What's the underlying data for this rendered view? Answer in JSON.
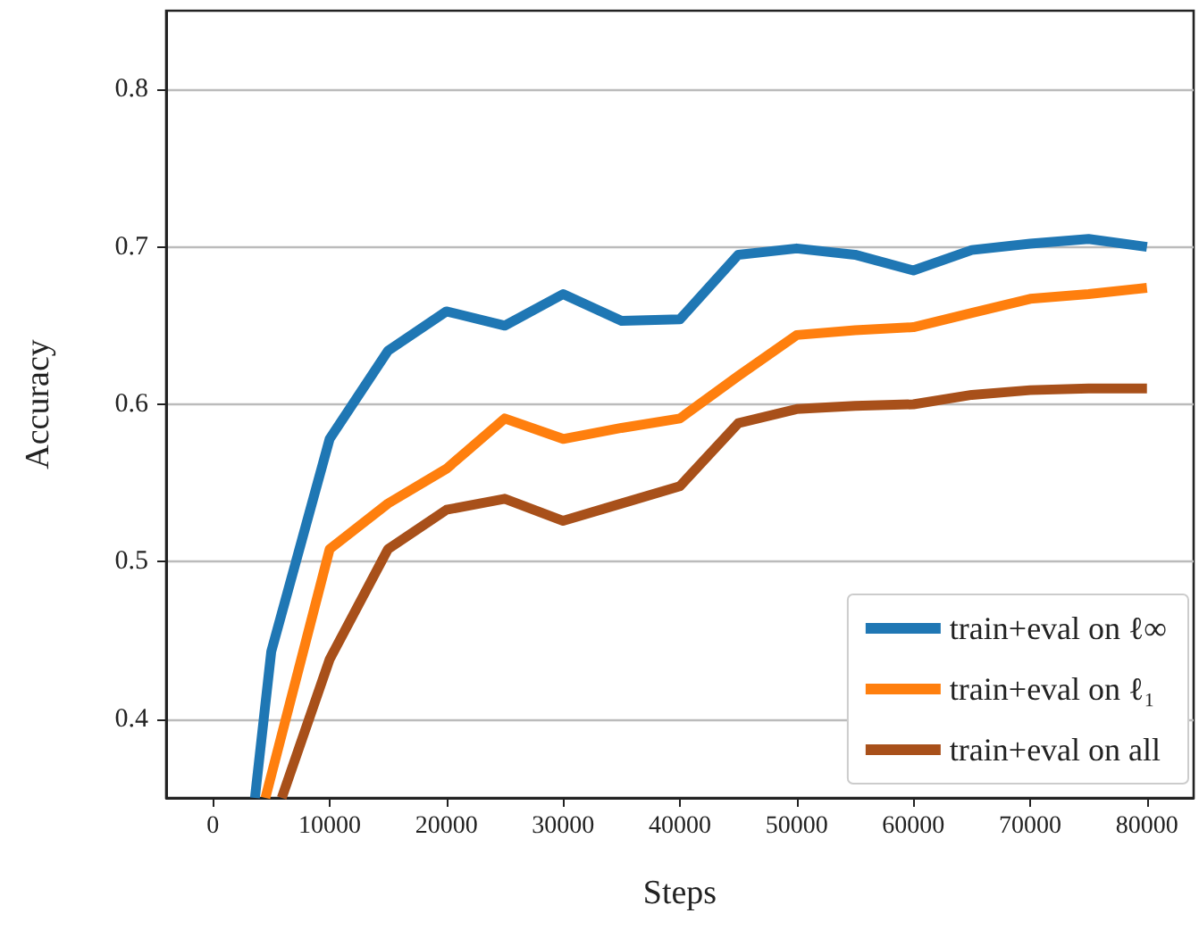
{
  "chart_data": {
    "type": "line",
    "xlabel": "Steps",
    "ylabel": "Accuracy",
    "xlim": [
      -4000,
      84000
    ],
    "xticks": [
      0,
      10000,
      20000,
      30000,
      40000,
      50000,
      60000,
      70000,
      80000
    ],
    "ylim": [
      0.35,
      0.85
    ],
    "yticks": [
      0.4,
      0.5,
      0.6,
      0.7,
      0.8
    ],
    "grid": "y",
    "legend": "bottom right",
    "marker": "none",
    "line_style": "solid",
    "series": [
      {
        "name": "train+eval on ℓ∞",
        "color": "#1f77b4",
        "x": [
          3600,
          5000,
          10000,
          15000,
          20000,
          25000,
          30000,
          35000,
          40000,
          45000,
          50000,
          55000,
          60000,
          65000,
          70000,
          75000,
          80000
        ],
        "values": [
          0.35,
          0.443,
          0.578,
          0.634,
          0.659,
          0.65,
          0.67,
          0.653,
          0.654,
          0.695,
          0.699,
          0.695,
          0.685,
          0.698,
          0.702,
          0.705,
          0.7
        ]
      },
      {
        "name": "train+eval on ℓ₁",
        "color": "#ff7f0e",
        "x": [
          4500,
          10000,
          15000,
          20000,
          25000,
          30000,
          35000,
          40000,
          45000,
          50000,
          55000,
          60000,
          65000,
          70000,
          75000,
          80000
        ],
        "values": [
          0.35,
          0.508,
          0.537,
          0.559,
          0.591,
          0.578,
          0.585,
          0.591,
          0.618,
          0.644,
          0.647,
          0.649,
          0.658,
          0.667,
          0.67,
          0.674
        ]
      },
      {
        "name": "train+eval on all",
        "color": "#a8501a",
        "x": [
          5900,
          10000,
          15000,
          20000,
          25000,
          30000,
          35000,
          40000,
          45000,
          50000,
          55000,
          60000,
          65000,
          70000,
          75000,
          80000
        ],
        "values": [
          0.35,
          0.438,
          0.508,
          0.533,
          0.54,
          0.526,
          0.537,
          0.548,
          0.588,
          0.597,
          0.599,
          0.6,
          0.606,
          0.609,
          0.61,
          0.61
        ]
      }
    ]
  }
}
